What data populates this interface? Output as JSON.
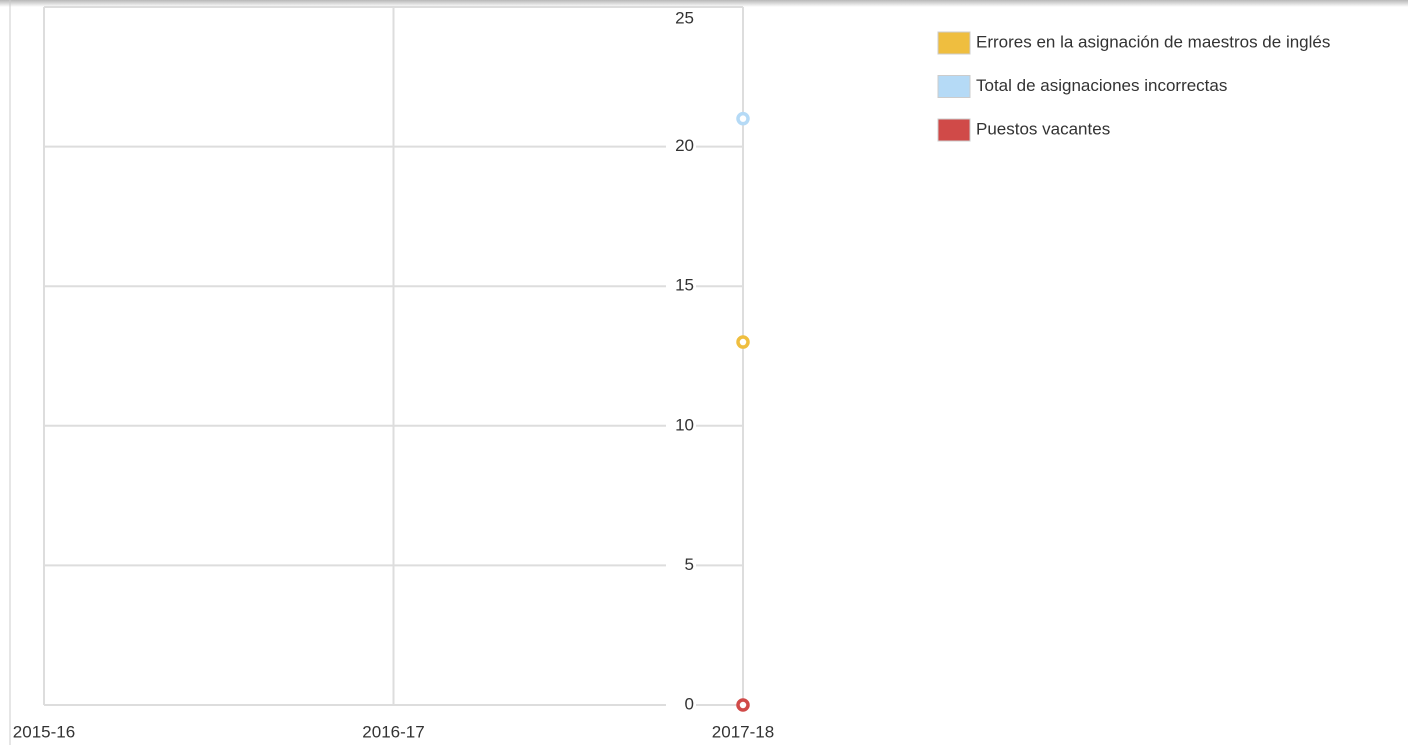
{
  "chart_data": {
    "type": "line",
    "categories": [
      "2015-16",
      "2016-17",
      "2017-18"
    ],
    "series": [
      {
        "name": "Errores en la asignación de maestros de inglés",
        "color": "#efbe3f",
        "values": [
          null,
          null,
          13
        ]
      },
      {
        "name": "Total de asignaciones incorrectas",
        "color": "#b5daf6",
        "values": [
          null,
          null,
          21
        ]
      },
      {
        "name": "Puestos vacantes",
        "color": "#d04a48",
        "values": [
          null,
          null,
          0
        ]
      }
    ],
    "ylim": [
      0,
      25
    ],
    "yticks": [
      0,
      5,
      10,
      15,
      20,
      25
    ],
    "grid": true,
    "legend": "right"
  }
}
